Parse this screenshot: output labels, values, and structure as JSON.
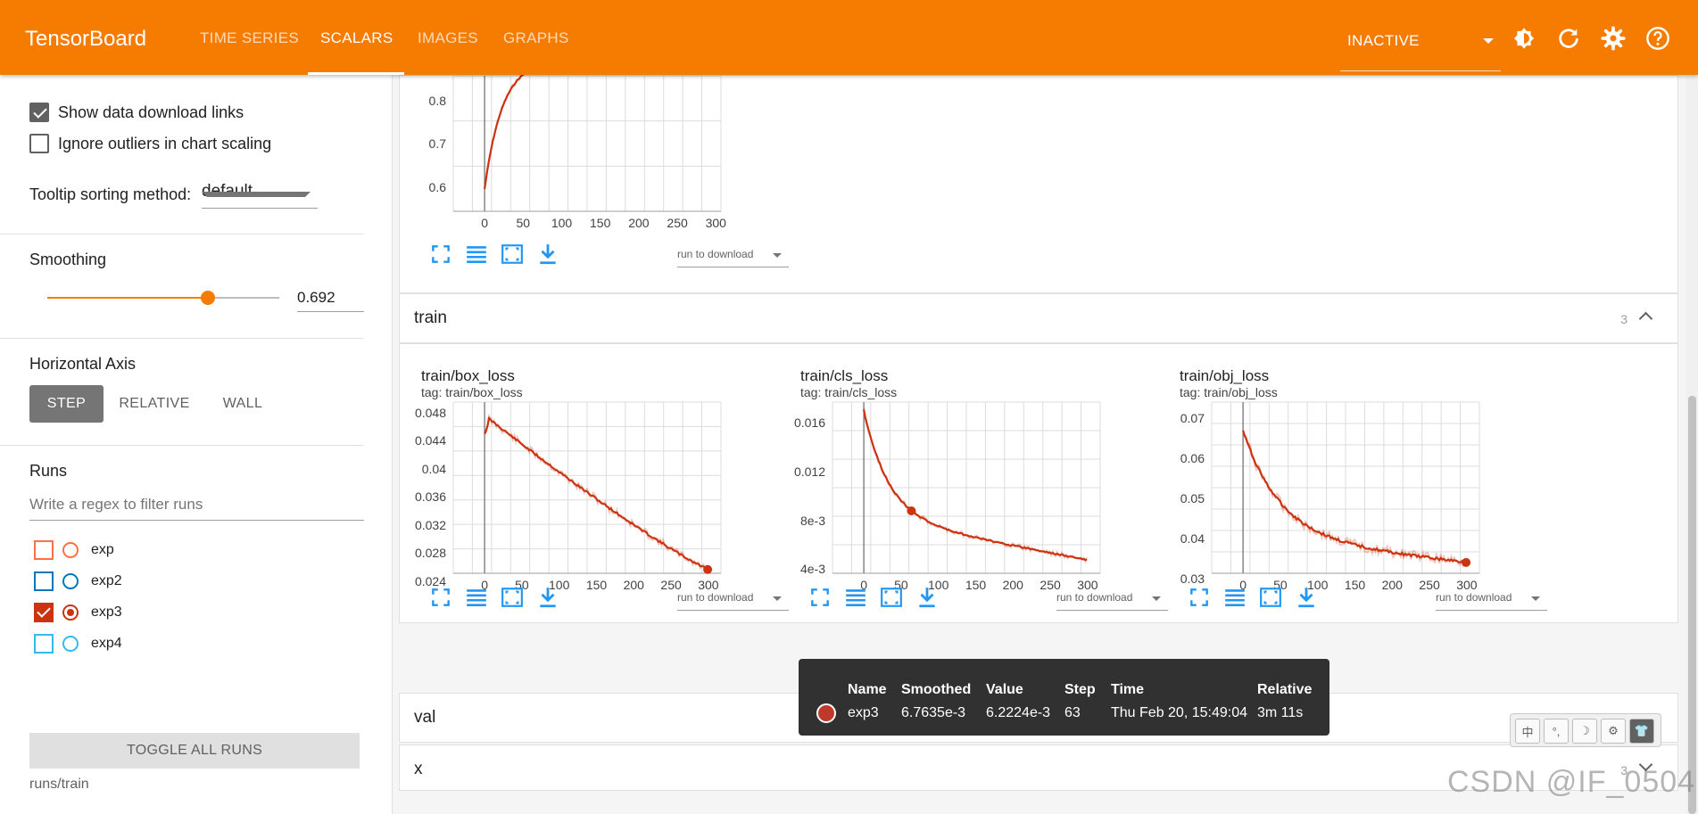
{
  "app": {
    "title": "TensorBoard",
    "nav": [
      "TIME SERIES",
      "SCALARS",
      "IMAGES",
      "GRAPHS"
    ],
    "run_select": "INACTIVE",
    "accent": "#f57c00"
  },
  "icons": [
    "brightness-icon",
    "refresh-icon",
    "settings-icon",
    "help-icon"
  ],
  "sidebar": {
    "show_download_links": "Show data download links",
    "ignore_outliers": "Ignore outliers in chart scaling",
    "tooltip_sorting_label": "Tooltip sorting method:",
    "tooltip_sorting_value": "default",
    "smoothing_label": "Smoothing",
    "smoothing_value": "0.692",
    "smoothing_fraction": 0.692,
    "horizontal_axis_label": "Horizontal Axis",
    "axis_options": [
      "STEP",
      "RELATIVE",
      "WALL"
    ],
    "runs_label": "Runs",
    "runs_filter_placeholder": "Write a regex to filter runs",
    "runs": [
      {
        "name": "exp",
        "color": "#ff7043",
        "checked": false
      },
      {
        "name": "exp2",
        "color": "#0077bb",
        "checked": false
      },
      {
        "name": "exp3",
        "color": "#cc3311",
        "checked": true
      },
      {
        "name": "exp4",
        "color": "#33bbee",
        "checked": false
      }
    ],
    "toggle_all": "TOGGLE ALL RUNS",
    "runs_path": "runs/train"
  },
  "groups": {
    "train": {
      "name": "train",
      "count": "3"
    },
    "val": {
      "name": "val"
    },
    "x": {
      "name": "x",
      "count": "3"
    }
  },
  "download_select": "run to download",
  "charts": {
    "top": {
      "yticks": [
        "0.8",
        "0.7",
        "0.6"
      ],
      "xticks": [
        "0",
        "50",
        "100",
        "150",
        "200",
        "250",
        "300"
      ]
    },
    "box_loss": {
      "title": "train/box_loss",
      "tag": "tag: train/box_loss",
      "yticks": [
        "0.048",
        "0.044",
        "0.04",
        "0.036",
        "0.032",
        "0.028",
        "0.024"
      ],
      "xticks": [
        "0",
        "50",
        "100",
        "150",
        "200",
        "250",
        "300"
      ]
    },
    "cls_loss": {
      "title": "train/cls_loss",
      "tag": "tag: train/cls_loss",
      "yticks": [
        "0.016",
        "0.012",
        "8e-3",
        "4e-3"
      ],
      "xticks": [
        "0",
        "50",
        "100",
        "150",
        "200",
        "250",
        "300"
      ]
    },
    "obj_loss": {
      "title": "train/obj_loss",
      "tag": "tag: train/obj_loss",
      "yticks": [
        "0.07",
        "0.06",
        "0.05",
        "0.04",
        "0.03"
      ],
      "xticks": [
        "0",
        "50",
        "100",
        "150",
        "200",
        "250",
        "300"
      ]
    }
  },
  "tooltip": {
    "headers": [
      "Name",
      "Smoothed",
      "Value",
      "Step",
      "Time",
      "Relative"
    ],
    "row": [
      "exp3",
      "6.7635e-3",
      "6.2224e-3",
      "63",
      "Thu Feb 20, 15:49:04",
      "3m 11s"
    ]
  },
  "float_tools": [
    "中",
    "°,",
    "☽",
    "⚙",
    "👕"
  ],
  "watermark": "CSDN @IF_0504"
}
